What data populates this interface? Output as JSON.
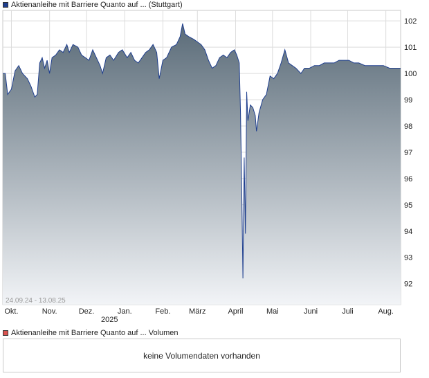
{
  "legend_price": {
    "label": "Aktienanleihe mit Barriere Quanto auf ... (Stuttgart)",
    "color": "#1f3f8f"
  },
  "legend_volume": {
    "label": "Aktienanleihe mit Barriere Quanto auf ... Volumen",
    "color": "#d9534f"
  },
  "volume_message": "keine Volumendaten vorhanden",
  "chart_data": {
    "type": "area",
    "date_range_label": "24.09.24 - 13.08.25",
    "x_ticks": [
      "Okt.",
      "Nov.",
      "Dez.",
      "Jan.",
      "Feb.",
      "März",
      "April",
      "Mai",
      "Juni",
      "Juli",
      "Aug."
    ],
    "year_label": "2025",
    "y_ticks": [
      92,
      93,
      94,
      95,
      96,
      97,
      98,
      99,
      100,
      101,
      102
    ],
    "ylim": [
      91.2,
      102.4
    ],
    "xlim": [
      "2024-09-24",
      "2025-08-13"
    ],
    "line_color": "#1f3f8f",
    "fill_top_color": "#5a6b78",
    "fill_bottom_color": "#f2f4f7",
    "grid": true,
    "series": [
      {
        "points": [
          [
            "2024-09-24",
            100.0
          ],
          [
            "2024-09-26",
            100.0
          ],
          [
            "2024-09-28",
            99.2
          ],
          [
            "2024-10-01",
            99.4
          ],
          [
            "2024-10-04",
            100.1
          ],
          [
            "2024-10-07",
            100.3
          ],
          [
            "2024-10-10",
            100.0
          ],
          [
            "2024-10-14",
            99.8
          ],
          [
            "2024-10-17",
            99.5
          ],
          [
            "2024-10-20",
            99.1
          ],
          [
            "2024-10-22",
            99.2
          ],
          [
            "2024-10-24",
            100.4
          ],
          [
            "2024-10-26",
            100.6
          ],
          [
            "2024-10-28",
            100.2
          ],
          [
            "2024-10-30",
            100.5
          ],
          [
            "2024-11-01",
            100.0
          ],
          [
            "2024-11-03",
            100.6
          ],
          [
            "2024-11-06",
            100.7
          ],
          [
            "2024-11-09",
            100.9
          ],
          [
            "2024-11-12",
            100.8
          ],
          [
            "2024-11-15",
            101.1
          ],
          [
            "2024-11-17",
            100.8
          ],
          [
            "2024-11-20",
            101.1
          ],
          [
            "2024-11-24",
            101.0
          ],
          [
            "2024-11-27",
            100.7
          ],
          [
            "2024-11-30",
            100.6
          ],
          [
            "2024-12-03",
            100.5
          ],
          [
            "2024-12-06",
            100.9
          ],
          [
            "2024-12-09",
            100.6
          ],
          [
            "2024-12-12",
            100.3
          ],
          [
            "2024-12-14",
            100.0
          ],
          [
            "2024-12-17",
            100.6
          ],
          [
            "2024-12-20",
            100.7
          ],
          [
            "2024-12-23",
            100.5
          ],
          [
            "2024-12-27",
            100.8
          ],
          [
            "2024-12-30",
            100.9
          ],
          [
            "2025-01-03",
            100.6
          ],
          [
            "2025-01-06",
            100.8
          ],
          [
            "2025-01-09",
            100.5
          ],
          [
            "2025-01-12",
            100.4
          ],
          [
            "2025-01-15",
            100.6
          ],
          [
            "2025-01-18",
            100.8
          ],
          [
            "2025-01-21",
            100.9
          ],
          [
            "2025-01-24",
            101.1
          ],
          [
            "2025-01-27",
            100.8
          ],
          [
            "2025-01-29",
            99.8
          ],
          [
            "2025-02-01",
            100.5
          ],
          [
            "2025-02-04",
            100.6
          ],
          [
            "2025-02-08",
            101.0
          ],
          [
            "2025-02-12",
            101.1
          ],
          [
            "2025-02-15",
            101.4
          ],
          [
            "2025-02-17",
            101.9
          ],
          [
            "2025-02-19",
            101.5
          ],
          [
            "2025-02-22",
            101.4
          ],
          [
            "2025-02-26",
            101.3
          ],
          [
            "2025-03-01",
            101.2
          ],
          [
            "2025-03-04",
            101.1
          ],
          [
            "2025-03-07",
            100.9
          ],
          [
            "2025-03-10",
            100.5
          ],
          [
            "2025-03-13",
            100.2
          ],
          [
            "2025-03-16",
            100.3
          ],
          [
            "2025-03-19",
            100.6
          ],
          [
            "2025-03-22",
            100.7
          ],
          [
            "2025-03-25",
            100.6
          ],
          [
            "2025-03-28",
            100.8
          ],
          [
            "2025-03-31",
            100.9
          ],
          [
            "2025-04-02",
            100.7
          ],
          [
            "2025-04-04",
            100.4
          ],
          [
            "2025-04-05",
            98.5
          ],
          [
            "2025-04-06",
            95.5
          ],
          [
            "2025-04-07",
            92.2
          ],
          [
            "2025-04-08",
            96.8
          ],
          [
            "2025-04-09",
            93.9
          ],
          [
            "2025-04-10",
            99.3
          ],
          [
            "2025-04-11",
            98.2
          ],
          [
            "2025-04-13",
            98.8
          ],
          [
            "2025-04-15",
            98.7
          ],
          [
            "2025-04-17",
            98.4
          ],
          [
            "2025-04-18",
            97.8
          ],
          [
            "2025-04-20",
            98.5
          ],
          [
            "2025-04-23",
            99.0
          ],
          [
            "2025-04-26",
            99.2
          ],
          [
            "2025-04-29",
            99.9
          ],
          [
            "2025-05-02",
            99.8
          ],
          [
            "2025-05-05",
            100.0
          ],
          [
            "2025-05-08",
            100.4
          ],
          [
            "2025-05-11",
            100.9
          ],
          [
            "2025-05-14",
            100.4
          ],
          [
            "2025-05-17",
            100.3
          ],
          [
            "2025-05-20",
            100.2
          ],
          [
            "2025-05-24",
            100.0
          ],
          [
            "2025-05-27",
            100.2
          ],
          [
            "2025-05-31",
            100.2
          ],
          [
            "2025-06-04",
            100.3
          ],
          [
            "2025-06-08",
            100.3
          ],
          [
            "2025-06-12",
            100.4
          ],
          [
            "2025-06-16",
            100.4
          ],
          [
            "2025-06-20",
            100.4
          ],
          [
            "2025-06-24",
            100.5
          ],
          [
            "2025-06-28",
            100.5
          ],
          [
            "2025-07-02",
            100.5
          ],
          [
            "2025-07-06",
            100.4
          ],
          [
            "2025-07-10",
            100.4
          ],
          [
            "2025-07-15",
            100.3
          ],
          [
            "2025-07-20",
            100.3
          ],
          [
            "2025-07-25",
            100.3
          ],
          [
            "2025-07-30",
            100.3
          ],
          [
            "2025-08-04",
            100.2
          ],
          [
            "2025-08-08",
            100.2
          ],
          [
            "2025-08-13",
            100.2
          ]
        ]
      }
    ]
  }
}
